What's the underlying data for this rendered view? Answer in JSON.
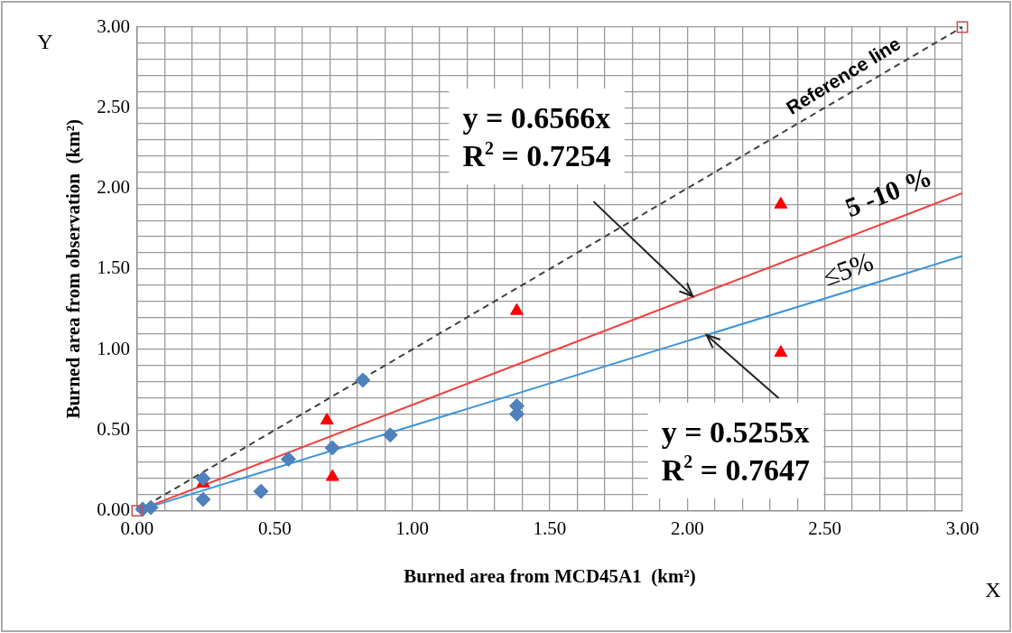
{
  "chart_data": {
    "type": "scatter",
    "xlabel": "Burned area from MCD45A1  (km²)",
    "ylabel": "Burned area from observation  (km²)",
    "xlim": [
      0,
      3
    ],
    "ylim": [
      0,
      3
    ],
    "xticks": [
      {
        "value": 0,
        "label": "0.00"
      },
      {
        "value": 0.1,
        "label": null
      },
      {
        "value": 0.2,
        "label": null
      },
      {
        "value": 0.3,
        "label": null
      },
      {
        "value": 0.4,
        "label": null
      },
      {
        "value": 0.5,
        "label": "0.50"
      },
      {
        "value": 0.6,
        "label": null
      },
      {
        "value": 0.7,
        "label": null
      },
      {
        "value": 0.8,
        "label": null
      },
      {
        "value": 0.9,
        "label": null
      },
      {
        "value": 1,
        "label": "1.00"
      },
      {
        "value": 1.1,
        "label": null
      },
      {
        "value": 1.2,
        "label": null
      },
      {
        "value": 1.3,
        "label": null
      },
      {
        "value": 1.4,
        "label": null
      },
      {
        "value": 1.5,
        "label": "1.50"
      },
      {
        "value": 1.6,
        "label": null
      },
      {
        "value": 1.7,
        "label": null
      },
      {
        "value": 1.8,
        "label": null
      },
      {
        "value": 1.9,
        "label": null
      },
      {
        "value": 2,
        "label": "2.00"
      },
      {
        "value": 2.1,
        "label": null
      },
      {
        "value": 2.2,
        "label": null
      },
      {
        "value": 2.3,
        "label": null
      },
      {
        "value": 2.4,
        "label": null
      },
      {
        "value": 2.5,
        "label": "2.50"
      },
      {
        "value": 2.6,
        "label": null
      },
      {
        "value": 2.7,
        "label": null
      },
      {
        "value": 2.8,
        "label": null
      },
      {
        "value": 2.9,
        "label": null
      },
      {
        "value": 3,
        "label": "3.00"
      }
    ],
    "yticks": [
      {
        "value": 0,
        "label": "0.00"
      },
      {
        "value": 0.1,
        "label": null
      },
      {
        "value": 0.2,
        "label": null
      },
      {
        "value": 0.3,
        "label": null
      },
      {
        "value": 0.4,
        "label": null
      },
      {
        "value": 0.5,
        "label": "0.50"
      },
      {
        "value": 0.6,
        "label": null
      },
      {
        "value": 0.7,
        "label": null
      },
      {
        "value": 0.8,
        "label": null
      },
      {
        "value": 0.9,
        "label": null
      },
      {
        "value": 1,
        "label": "1.00"
      },
      {
        "value": 1.1,
        "label": null
      },
      {
        "value": 1.2,
        "label": null
      },
      {
        "value": 1.3,
        "label": null
      },
      {
        "value": 1.4,
        "label": null
      },
      {
        "value": 1.5,
        "label": "1.50"
      },
      {
        "value": 1.6,
        "label": null
      },
      {
        "value": 1.7,
        "label": null
      },
      {
        "value": 1.8,
        "label": null
      },
      {
        "value": 1.9,
        "label": null
      },
      {
        "value": 2,
        "label": "2.00"
      },
      {
        "value": 2.1,
        "label": null
      },
      {
        "value": 2.2,
        "label": null
      },
      {
        "value": 2.3,
        "label": null
      },
      {
        "value": 2.4,
        "label": null
      },
      {
        "value": 2.5,
        "label": "2.50"
      },
      {
        "value": 2.6,
        "label": null
      },
      {
        "value": 2.7,
        "label": null
      },
      {
        "value": 2.8,
        "label": null
      },
      {
        "value": 2.9,
        "label": null
      },
      {
        "value": 3,
        "label": "3.00"
      }
    ],
    "grid": true,
    "legend": false,
    "series": [
      {
        "type": "scatter",
        "marker": "diamond",
        "color": "#4f81bd",
        "x": [
          0.02,
          0.05,
          0.24,
          0.24,
          0.45,
          0.55,
          0.71,
          0.82,
          0.92,
          1.38,
          1.38
        ],
        "values": [
          0.01,
          0.02,
          0.2,
          0.07,
          0.12,
          0.32,
          0.39,
          0.81,
          0.47,
          0.65,
          0.6
        ]
      },
      {
        "type": "scatter",
        "marker": "triangle",
        "color": "#ff0000",
        "x": [
          0.24,
          0.69,
          0.71,
          1.38,
          2.34,
          2.34
        ],
        "values": [
          0.17,
          0.56,
          0.21,
          1.24,
          1.9,
          0.98
        ]
      },
      {
        "type": "scatter",
        "marker": "square",
        "color": "#c0504d",
        "x": [
          0,
          3
        ],
        "values": [
          0,
          3
        ]
      },
      {
        "type": "line",
        "marker": "none",
        "line_style": "dashed",
        "color": "#404040",
        "x": [
          0,
          3
        ],
        "values": [
          0,
          3
        ]
      },
      {
        "type": "line",
        "marker": "none",
        "line_style": "solid",
        "color": "#f04040",
        "x": [
          0,
          3
        ],
        "values": [
          0,
          1.97
        ]
      },
      {
        "type": "line",
        "marker": "none",
        "line_style": "solid",
        "color": "#3d95d8",
        "x": [
          0,
          3
        ],
        "values": [
          0,
          1.58
        ]
      }
    ],
    "annotations": [
      {
        "text": "y = 0.6566x\nR$^{2}$ = 0.7254",
        "x": 2.02,
        "y": 1.33
      },
      {
        "text": "y = 0.5255x\nR$^{2}$ = 0.7647",
        "x": 2.07,
        "y": 1.09
      },
      "Reference line",
      "5 -10 %",
      "≤5%",
      "X",
      "Y"
    ]
  }
}
